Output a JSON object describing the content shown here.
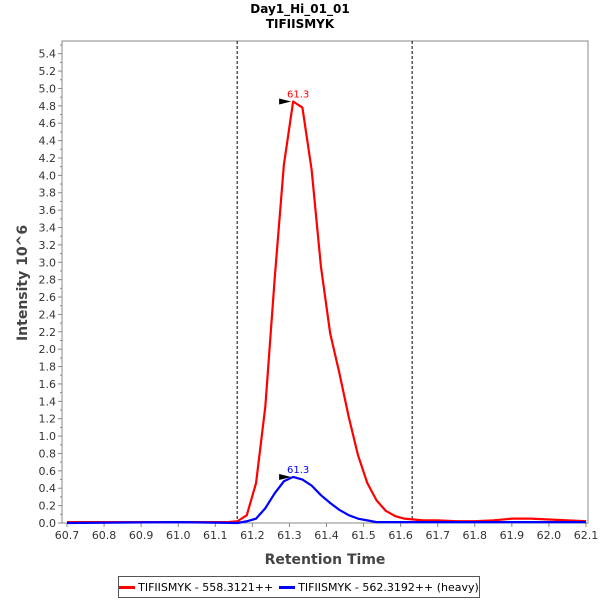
{
  "chart_data": {
    "type": "line",
    "title": "Day1_Hi_01_01",
    "subtitle": "TIFIISMYK",
    "xlabel": "Retention Time",
    "ylabel": "Intensity 10^6",
    "xlim": [
      60.7,
      62.1
    ],
    "ylim": [
      0,
      5.5
    ],
    "xticks": [
      "60.7",
      "60.8",
      "60.9",
      "61.0",
      "61.1",
      "61.2",
      "61.3",
      "61.4",
      "61.5",
      "61.6",
      "61.7",
      "61.8",
      "61.9",
      "62.0",
      "62.1"
    ],
    "yticks": [
      "0.0",
      "0.1",
      "0.2",
      "0.3",
      "0.4",
      "0.5",
      "0.6",
      "0.7",
      "0.8",
      "0.9",
      "1.0",
      "1.1",
      "1.2",
      "1.3",
      "1.4",
      "1.5",
      "1.6",
      "1.7",
      "1.8",
      "1.9",
      "2.0",
      "2.1",
      "2.2",
      "2.3",
      "2.4",
      "2.5",
      "2.6",
      "2.7",
      "2.8",
      "2.9",
      "3.0",
      "3.1",
      "3.2",
      "3.3",
      "3.4",
      "3.5",
      "3.6",
      "3.7",
      "3.8",
      "3.9",
      "4.0",
      "4.1",
      "4.2",
      "4.3",
      "4.4",
      "4.5",
      "4.6",
      "4.7",
      "4.8",
      "4.9",
      "5.0",
      "5.1",
      "5.2",
      "5.3",
      "5.4",
      "5.5"
    ],
    "yticks_labeled_every": 2,
    "boundaries": [
      61.159,
      61.631
    ],
    "series": [
      {
        "name": "TIFIISMYK - 558.3121++",
        "color": "#ff0000",
        "peak_label": "61.3",
        "x": [
          60.7,
          61.0,
          61.135,
          61.16,
          61.185,
          61.21,
          61.235,
          61.26,
          61.285,
          61.31,
          61.335,
          61.36,
          61.385,
          61.41,
          61.435,
          61.46,
          61.485,
          61.51,
          61.535,
          61.56,
          61.585,
          61.61,
          61.635,
          61.66,
          61.7,
          61.75,
          61.8,
          61.85,
          61.9,
          61.95,
          62.0,
          62.05,
          62.1
        ],
        "y": [
          0.01,
          0.01,
          0.01,
          0.02,
          0.09,
          0.46,
          1.34,
          2.8,
          4.12,
          4.85,
          4.78,
          4.06,
          2.95,
          2.18,
          1.72,
          1.22,
          0.78,
          0.46,
          0.26,
          0.14,
          0.08,
          0.05,
          0.04,
          0.03,
          0.03,
          0.02,
          0.02,
          0.03,
          0.05,
          0.05,
          0.04,
          0.03,
          0.02
        ]
      },
      {
        "name": "TIFIISMYK - 562.3192++ (heavy)",
        "color": "#0000ff",
        "peak_label": "61.3",
        "x": [
          60.7,
          61.0,
          61.16,
          61.185,
          61.21,
          61.235,
          61.26,
          61.285,
          61.31,
          61.335,
          61.36,
          61.385,
          61.41,
          61.435,
          61.46,
          61.485,
          61.51,
          61.535,
          61.56,
          61.6,
          61.7,
          62.1
        ],
        "y": [
          0.0,
          0.01,
          0.0,
          0.02,
          0.05,
          0.17,
          0.34,
          0.48,
          0.53,
          0.5,
          0.43,
          0.32,
          0.23,
          0.15,
          0.09,
          0.05,
          0.03,
          0.01,
          0.01,
          0.01,
          0.01,
          0.01
        ]
      }
    ],
    "legend_position": "bottom"
  }
}
